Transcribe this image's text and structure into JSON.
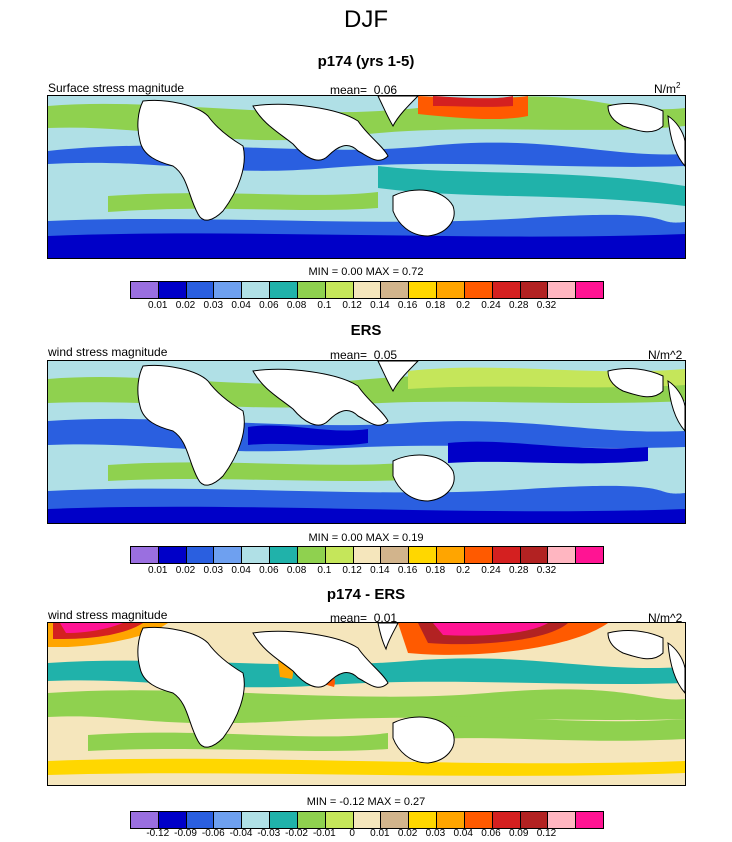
{
  "figure": {
    "season": "DJF"
  },
  "panels": [
    {
      "title": "p174 (yrs 1-5)",
      "left_label": "Surface stress magnitude",
      "mean_label": "mean=",
      "mean_value": "0.06",
      "units": "N/m",
      "units_sup": "2",
      "minmax": "MIN =  0.00 MAX =  0.72",
      "scale": "magnitude"
    },
    {
      "title": "ERS",
      "left_label": "wind stress magnitude",
      "mean_label": "mean=",
      "mean_value": "0.05",
      "units": "N/m^2",
      "units_sup": "",
      "minmax": "MIN =  0.00 MAX =  0.19",
      "scale": "magnitude"
    },
    {
      "title": "p174 - ERS",
      "left_label": "wind stress magnitude",
      "mean_label": "mean=",
      "mean_value": "0.01",
      "units": "N/m^2",
      "units_sup": "",
      "minmax": "MIN =  -0.12 MAX =  0.27",
      "scale": "difference"
    }
  ],
  "colorbars": {
    "colors": [
      "#9a6fe0",
      "#0000c8",
      "#2a5fe0",
      "#6ea0f0",
      "#b0e0e6",
      "#20b2aa",
      "#8fd14f",
      "#c5e65a",
      "#f5e6bc",
      "#d2b48c",
      "#ffd700",
      "#ffa500",
      "#ff5a00",
      "#d42020",
      "#b22222",
      "#ffb6c1",
      "#ff1493"
    ],
    "magnitude_ticks": [
      "0.01",
      "0.02",
      "0.03",
      "0.04",
      "0.06",
      "0.08",
      "0.1",
      "0.12",
      "0.14",
      "0.16",
      "0.18",
      "0.2",
      "0.24",
      "0.28",
      "0.32"
    ],
    "difference_ticks": [
      "-0.12",
      "-0.09",
      "-0.06",
      "-0.04",
      "-0.03",
      "-0.02",
      "-0.01",
      "0",
      "0.01",
      "0.02",
      "0.03",
      "0.04",
      "0.06",
      "0.09",
      "0.12"
    ]
  }
}
